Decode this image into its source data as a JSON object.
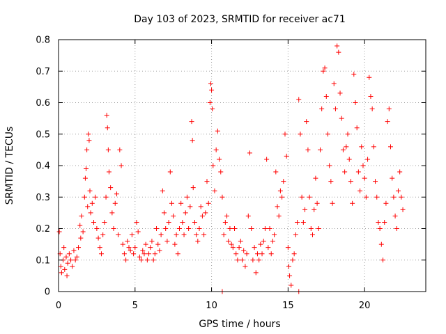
{
  "chart_data": {
    "type": "scatter",
    "title": "Day 103 of 2023, SRMTID for receiver ac71",
    "xlabel": "GPS time / hours",
    "ylabel": "SRMTID / TECUs",
    "xlim": [
      0,
      24
    ],
    "ylim": [
      0,
      0.8
    ],
    "x_ticks": [
      0,
      5,
      10,
      15,
      20
    ],
    "y_ticks": [
      0,
      0.1,
      0.2,
      0.3,
      0.4,
      0.5,
      0.6,
      0.7,
      0.8
    ],
    "x_tick_labels": [
      "0",
      "5",
      "10",
      "15",
      "20"
    ],
    "y_tick_labels": [
      "0",
      "0.1",
      "0.2",
      "0.3",
      "0.4",
      "0.5",
      "0.6",
      "0.7",
      "0.8"
    ],
    "grid": true,
    "marker": "plus",
    "color": "#ff0000",
    "series": [
      {
        "name": "SRMTID",
        "points": [
          [
            0.05,
            0.19
          ],
          [
            0.1,
            0.12
          ],
          [
            0.15,
            0.08
          ],
          [
            0.2,
            0.06
          ],
          [
            0.3,
            0.1
          ],
          [
            0.35,
            0.14
          ],
          [
            0.4,
            0.07
          ],
          [
            0.5,
            0.11
          ],
          [
            0.55,
            0.05
          ],
          [
            0.6,
            0.09
          ],
          [
            0.7,
            0.12
          ],
          [
            0.8,
            0.1
          ],
          [
            0.9,
            0.08
          ],
          [
            1.0,
            0.13
          ],
          [
            1.1,
            0.1
          ],
          [
            1.2,
            0.11
          ],
          [
            1.3,
            0.14
          ],
          [
            1.4,
            0.21
          ],
          [
            1.45,
            0.17
          ],
          [
            1.5,
            0.24
          ],
          [
            1.6,
            0.19
          ],
          [
            1.7,
            0.3
          ],
          [
            1.75,
            0.36
          ],
          [
            1.8,
            0.39
          ],
          [
            1.85,
            0.45
          ],
          [
            1.9,
            0.27
          ],
          [
            1.95,
            0.5
          ],
          [
            2.0,
            0.48
          ],
          [
            2.05,
            0.32
          ],
          [
            2.1,
            0.25
          ],
          [
            2.2,
            0.28
          ],
          [
            2.3,
            0.22
          ],
          [
            2.4,
            0.3
          ],
          [
            2.5,
            0.2
          ],
          [
            2.6,
            0.17
          ],
          [
            2.7,
            0.14
          ],
          [
            2.8,
            0.12
          ],
          [
            2.9,
            0.18
          ],
          [
            3.0,
            0.22
          ],
          [
            3.1,
            0.3
          ],
          [
            3.15,
            0.56
          ],
          [
            3.2,
            0.52
          ],
          [
            3.25,
            0.45
          ],
          [
            3.3,
            0.38
          ],
          [
            3.4,
            0.33
          ],
          [
            3.5,
            0.25
          ],
          [
            3.6,
            0.2
          ],
          [
            3.7,
            0.28
          ],
          [
            3.8,
            0.31
          ],
          [
            3.9,
            0.18
          ],
          [
            4.0,
            0.45
          ],
          [
            4.1,
            0.4
          ],
          [
            4.2,
            0.15
          ],
          [
            4.3,
            0.12
          ],
          [
            4.4,
            0.1
          ],
          [
            4.5,
            0.16
          ],
          [
            4.6,
            0.14
          ],
          [
            4.7,
            0.13
          ],
          [
            4.8,
            0.18
          ],
          [
            4.9,
            0.12
          ],
          [
            5.0,
            0.14
          ],
          [
            5.1,
            0.22
          ],
          [
            5.2,
            0.19
          ],
          [
            5.3,
            0.11
          ],
          [
            5.4,
            0.1
          ],
          [
            5.5,
            0.13
          ],
          [
            5.6,
            0.12
          ],
          [
            5.7,
            0.15
          ],
          [
            5.8,
            0.1
          ],
          [
            5.9,
            0.12
          ],
          [
            6.0,
            0.14
          ],
          [
            6.1,
            0.16
          ],
          [
            6.2,
            0.1
          ],
          [
            6.3,
            0.12
          ],
          [
            6.4,
            0.2
          ],
          [
            6.5,
            0.15
          ],
          [
            6.6,
            0.13
          ],
          [
            6.7,
            0.18
          ],
          [
            6.8,
            0.32
          ],
          [
            6.9,
            0.25
          ],
          [
            7.0,
            0.2
          ],
          [
            7.1,
            0.16
          ],
          [
            7.2,
            0.22
          ],
          [
            7.3,
            0.38
          ],
          [
            7.4,
            0.28
          ],
          [
            7.5,
            0.24
          ],
          [
            7.6,
            0.15
          ],
          [
            7.7,
            0.18
          ],
          [
            7.8,
            0.12
          ],
          [
            7.9,
            0.2
          ],
          [
            8.0,
            0.28
          ],
          [
            8.1,
            0.22
          ],
          [
            8.2,
            0.18
          ],
          [
            8.3,
            0.25
          ],
          [
            8.4,
            0.3
          ],
          [
            8.5,
            0.2
          ],
          [
            8.6,
            0.27
          ],
          [
            8.7,
            0.54
          ],
          [
            8.75,
            0.48
          ],
          [
            8.8,
            0.33
          ],
          [
            8.9,
            0.22
          ],
          [
            9.0,
            0.18
          ],
          [
            9.1,
            0.16
          ],
          [
            9.2,
            0.2
          ],
          [
            9.3,
            0.27
          ],
          [
            9.4,
            0.24
          ],
          [
            9.5,
            0.18
          ],
          [
            9.6,
            0.25
          ],
          [
            9.7,
            0.35
          ],
          [
            9.8,
            0.28
          ],
          [
            9.9,
            0.6
          ],
          [
            9.95,
            0.66
          ],
          [
            10.0,
            0.64
          ],
          [
            10.05,
            0.58
          ],
          [
            10.1,
            0.4
          ],
          [
            10.2,
            0.32
          ],
          [
            10.3,
            0.45
          ],
          [
            10.4,
            0.51
          ],
          [
            10.5,
            0.42
          ],
          [
            10.6,
            0.38
          ],
          [
            10.7,
            0.3
          ],
          [
            10.8,
            0.18
          ],
          [
            10.9,
            0.22
          ],
          [
            11.0,
            0.24
          ],
          [
            11.1,
            0.16
          ],
          [
            11.2,
            0.2
          ],
          [
            11.3,
            0.15
          ],
          [
            11.4,
            0.14
          ],
          [
            11.5,
            0.2
          ],
          [
            11.6,
            0.12
          ],
          [
            11.7,
            0.1
          ],
          [
            11.8,
            0.14
          ],
          [
            11.9,
            0.16
          ],
          [
            12.0,
            0.1
          ],
          [
            12.1,
            0.13
          ],
          [
            12.2,
            0.08
          ],
          [
            12.3,
            0.12
          ],
          [
            12.4,
            0.24
          ],
          [
            12.5,
            0.44
          ],
          [
            12.6,
            0.2
          ],
          [
            12.7,
            0.1
          ],
          [
            12.8,
            0.14
          ],
          [
            12.9,
            0.06
          ],
          [
            13.0,
            0.12
          ],
          [
            13.1,
            0.1
          ],
          [
            13.2,
            0.15
          ],
          [
            13.3,
            0.12
          ],
          [
            13.4,
            0.16
          ],
          [
            13.5,
            0.2
          ],
          [
            13.6,
            0.42
          ],
          [
            13.7,
            0.14
          ],
          [
            13.8,
            0.2
          ],
          [
            13.9,
            0.12
          ],
          [
            14.0,
            0.16
          ],
          [
            14.1,
            0.18
          ],
          [
            14.2,
            0.38
          ],
          [
            14.3,
            0.27
          ],
          [
            14.4,
            0.24
          ],
          [
            14.5,
            0.32
          ],
          [
            14.6,
            0.3
          ],
          [
            14.7,
            0.35
          ],
          [
            14.8,
            0.5
          ],
          [
            14.9,
            0.43
          ],
          [
            15.0,
            0.14
          ],
          [
            15.05,
            0.08
          ],
          [
            15.1,
            0.05
          ],
          [
            15.2,
            0.02
          ],
          [
            15.3,
            0.1
          ],
          [
            15.4,
            0.12
          ],
          [
            15.5,
            0.18
          ],
          [
            15.6,
            0.22
          ],
          [
            15.7,
            0.61
          ],
          [
            15.8,
            0.5
          ],
          [
            15.9,
            0.3
          ],
          [
            16.0,
            0.22
          ],
          [
            16.1,
            0.26
          ],
          [
            16.2,
            0.54
          ],
          [
            16.3,
            0.45
          ],
          [
            16.4,
            0.3
          ],
          [
            16.5,
            0.2
          ],
          [
            16.6,
            0.18
          ],
          [
            16.7,
            0.26
          ],
          [
            16.8,
            0.36
          ],
          [
            16.9,
            0.28
          ],
          [
            17.0,
            0.2
          ],
          [
            17.1,
            0.45
          ],
          [
            17.2,
            0.58
          ],
          [
            17.3,
            0.7
          ],
          [
            17.4,
            0.71
          ],
          [
            17.5,
            0.62
          ],
          [
            17.6,
            0.5
          ],
          [
            17.7,
            0.4
          ],
          [
            17.8,
            0.35
          ],
          [
            17.9,
            0.28
          ],
          [
            18.0,
            0.66
          ],
          [
            18.1,
            0.58
          ],
          [
            18.2,
            0.78
          ],
          [
            18.3,
            0.76
          ],
          [
            18.4,
            0.63
          ],
          [
            18.5,
            0.55
          ],
          [
            18.6,
            0.45
          ],
          [
            18.7,
            0.38
          ],
          [
            18.8,
            0.46
          ],
          [
            18.9,
            0.5
          ],
          [
            19.0,
            0.42
          ],
          [
            19.1,
            0.35
          ],
          [
            19.2,
            0.28
          ],
          [
            19.3,
            0.69
          ],
          [
            19.4,
            0.6
          ],
          [
            19.5,
            0.52
          ],
          [
            19.6,
            0.38
          ],
          [
            19.7,
            0.32
          ],
          [
            19.8,
            0.46
          ],
          [
            19.9,
            0.4
          ],
          [
            20.0,
            0.36
          ],
          [
            20.1,
            0.3
          ],
          [
            20.2,
            0.42
          ],
          [
            20.3,
            0.68
          ],
          [
            20.4,
            0.62
          ],
          [
            20.5,
            0.58
          ],
          [
            20.6,
            0.46
          ],
          [
            20.7,
            0.35
          ],
          [
            20.8,
            0.3
          ],
          [
            20.9,
            0.22
          ],
          [
            21.0,
            0.2
          ],
          [
            21.1,
            0.15
          ],
          [
            21.2,
            0.1
          ],
          [
            21.3,
            0.22
          ],
          [
            21.4,
            0.28
          ],
          [
            21.5,
            0.54
          ],
          [
            21.6,
            0.58
          ],
          [
            21.7,
            0.46
          ],
          [
            21.8,
            0.36
          ],
          [
            21.9,
            0.3
          ],
          [
            22.0,
            0.24
          ],
          [
            22.1,
            0.2
          ],
          [
            22.2,
            0.32
          ],
          [
            22.3,
            0.38
          ],
          [
            22.4,
            0.3
          ],
          [
            22.5,
            0.26
          ],
          [
            10.7,
            0.0
          ],
          [
            15.7,
            0.0
          ]
        ]
      }
    ]
  }
}
